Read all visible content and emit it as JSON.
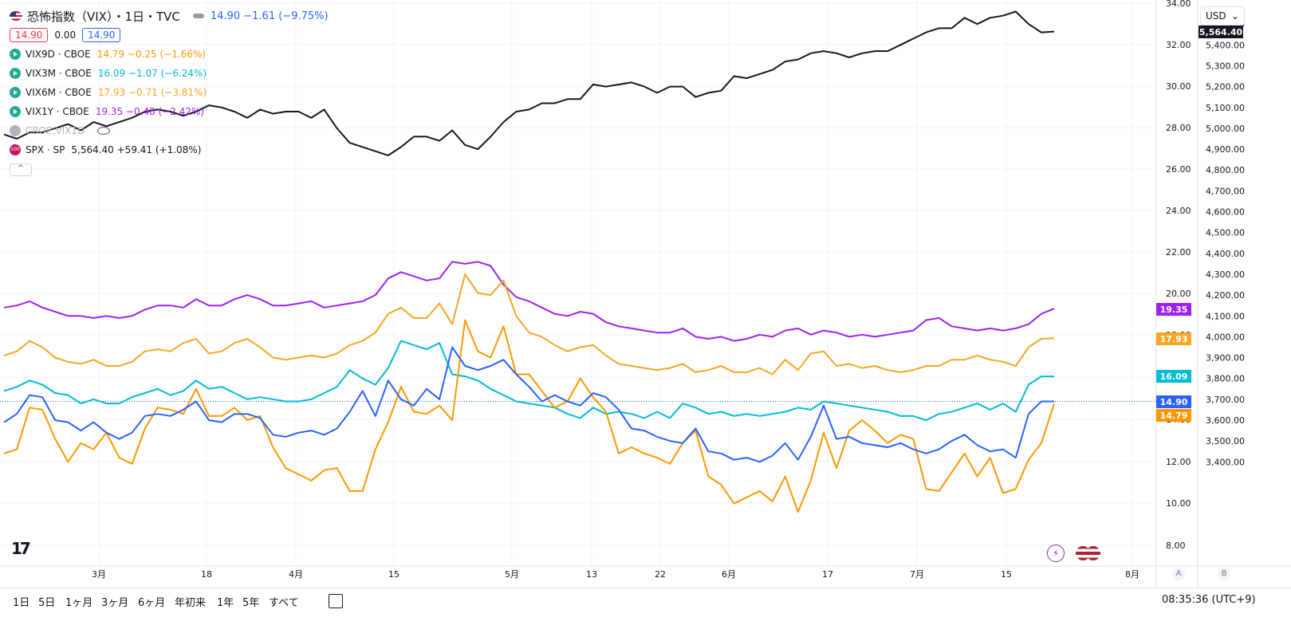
{
  "header": {
    "title": "恐怖指数（VIX）・1日・TVC",
    "change_text": "14.90 −1.61 (−9.75%)",
    "bid": "14.90",
    "spread": "0.00",
    "ask": "14.90",
    "collapse_glyph": "^"
  },
  "indicators": [
    {
      "name": "VIX9D · CBOE",
      "value": "14.79 −0.25 (−1.66%)",
      "color": "#ff9800"
    },
    {
      "name": "VIX3M · CBOE",
      "value": "16.09 −1.07 (−6.24%)",
      "color": "#00bcd4"
    },
    {
      "name": "VIX6M · CBOE",
      "value": "17.93 −0.71 (−3.81%)",
      "color": "#f5a623"
    },
    {
      "name": "VIX1Y · CBOE",
      "value": "19.35 −0.48 (−2.42%)",
      "color": "#a020f0"
    },
    {
      "name": "CBOE:VIX1D",
      "value": "",
      "color": "#b2b5be"
    },
    {
      "name": "SPX · SP",
      "value": "5,564.40 +59.41 (+1.08%)",
      "color": "#131722",
      "badge": "500"
    }
  ],
  "currency": {
    "label": "USD",
    "arrow": "⌄"
  },
  "range_buttons": [
    "1日",
    "5日",
    "1ヶ月",
    "3ヶ月",
    "6ヶ月",
    "年初来",
    "1年",
    "5年",
    "すべて"
  ],
  "clock": "08:35:36 (UTC+9)",
  "axis_ab": {
    "a": "A",
    "b": "B"
  },
  "logo_text": "17",
  "chart_data": {
    "type": "line",
    "x_tick_labels": [
      "3月",
      "18",
      "4月",
      "15",
      "5月",
      "13",
      "22",
      "6月",
      "17",
      "7月",
      "15",
      "8月"
    ],
    "left_axis": {
      "ticks": [
        "34.00",
        "32.00",
        "30.00",
        "28.00",
        "26.00",
        "24.00",
        "22.00",
        "20.00",
        "18.00",
        "16.00",
        "14.00",
        "12.00",
        "10.00",
        "8.00"
      ],
      "ylim": [
        7,
        34.3
      ]
    },
    "right_axis": {
      "ticks": [
        "5,564.40",
        "5,500.00",
        "5,400.00",
        "5,300.00",
        "5,200.00",
        "5,100.00",
        "5,000.00",
        "4,900.00",
        "4,800.00",
        "4,700.00",
        "4,600.00",
        "4,500.00",
        "4,400.00",
        "4,300.00",
        "4,200.00",
        "4,100.00",
        "4,000.00",
        "3,900.00",
        "3,800.00",
        "3,700.00",
        "3,600.00",
        "3,500.00",
        "3,400.00"
      ]
    },
    "last_value_labels": [
      {
        "text": "19.35",
        "color": "#a020f0"
      },
      {
        "text": "17.93",
        "color": "#f5a623"
      },
      {
        "text": "16.09",
        "color": "#00bcd4"
      },
      {
        "text": "14.90",
        "color": "#2962ff"
      },
      {
        "text": "14.79",
        "color": "#ff9800"
      },
      {
        "text": "5,564.40",
        "color": "#131722"
      }
    ],
    "series": [
      {
        "name": "SPX",
        "color": "#131722",
        "axis": "right",
        "values": [
          5070,
          5050,
          5080,
          5080,
          5100,
          5120,
          5090,
          5130,
          5110,
          5130,
          5150,
          5180,
          5190,
          5180,
          5160,
          5180,
          5210,
          5200,
          5180,
          5150,
          5190,
          5170,
          5180,
          5180,
          5150,
          5190,
          5100,
          5030,
          5010,
          4990,
          4970,
          5010,
          5060,
          5060,
          5040,
          5090,
          5020,
          5000,
          5060,
          5130,
          5180,
          5190,
          5220,
          5220,
          5240,
          5240,
          5310,
          5300,
          5310,
          5320,
          5300,
          5270,
          5300,
          5300,
          5250,
          5270,
          5280,
          5350,
          5340,
          5360,
          5380,
          5420,
          5430,
          5460,
          5470,
          5460,
          5440,
          5460,
          5470,
          5470,
          5500,
          5530,
          5560,
          5580,
          5580,
          5630,
          5600,
          5630,
          5640,
          5660,
          5600,
          5560,
          5564
        ]
      },
      {
        "name": "VIX",
        "color": "#2962ff",
        "axis": "left",
        "values": [
          13.9,
          14.3,
          15.2,
          15.1,
          14.0,
          13.9,
          13.5,
          13.9,
          13.4,
          13.1,
          13.4,
          14.2,
          14.3,
          14.2,
          14.5,
          14.9,
          14.0,
          13.9,
          14.3,
          14.3,
          14.1,
          13.3,
          13.2,
          13.4,
          13.5,
          13.3,
          13.6,
          14.4,
          15.4,
          14.2,
          15.9,
          15.0,
          14.7,
          15.5,
          15.0,
          17.5,
          16.6,
          16.4,
          16.6,
          16.9,
          16.2,
          15.6,
          14.9,
          15.2,
          14.9,
          14.7,
          15.3,
          15.1,
          14.5,
          13.6,
          13.5,
          13.2,
          13.0,
          12.9,
          13.6,
          12.5,
          12.4,
          12.1,
          12.2,
          12.0,
          12.3,
          12.9,
          12.1,
          13.2,
          14.7,
          13.1,
          13.2,
          12.9,
          12.8,
          12.7,
          12.9,
          12.6,
          12.4,
          12.6,
          13.0,
          13.3,
          12.8,
          12.5,
          12.6,
          12.2,
          14.3,
          14.9,
          14.9
        ]
      },
      {
        "name": "VIX3M",
        "color": "#00bcd4",
        "axis": "left",
        "values": [
          15.4,
          15.6,
          15.9,
          15.7,
          15.3,
          15.2,
          14.8,
          15.0,
          14.8,
          14.8,
          15.1,
          15.3,
          15.5,
          15.2,
          15.4,
          15.9,
          15.5,
          15.6,
          15.3,
          15.0,
          15.1,
          15.0,
          14.9,
          14.9,
          15.0,
          15.3,
          15.6,
          16.4,
          16.0,
          15.7,
          16.5,
          17.8,
          17.6,
          17.4,
          17.7,
          16.2,
          16.1,
          15.9,
          15.5,
          15.2,
          14.9,
          14.8,
          14.7,
          14.6,
          14.3,
          14.1,
          14.6,
          14.3,
          14.4,
          14.3,
          14.1,
          14.4,
          14.1,
          14.8,
          14.6,
          14.3,
          14.4,
          14.2,
          14.3,
          14.2,
          14.3,
          14.4,
          14.6,
          14.5,
          14.9,
          14.8,
          14.7,
          14.6,
          14.5,
          14.4,
          14.2,
          14.2,
          14.0,
          14.3,
          14.4,
          14.6,
          14.8,
          14.5,
          14.8,
          14.4,
          15.7,
          16.1,
          16.1
        ]
      },
      {
        "name": "VIX9D",
        "color": "#ff9800",
        "axis": "left",
        "values": [
          12.4,
          12.6,
          14.6,
          14.5,
          13.1,
          12.0,
          12.9,
          12.6,
          13.4,
          12.2,
          11.9,
          13.6,
          14.6,
          14.5,
          14.3,
          15.5,
          14.2,
          14.2,
          14.6,
          14.0,
          14.2,
          12.7,
          11.7,
          11.4,
          11.1,
          11.6,
          11.7,
          10.6,
          10.6,
          12.6,
          13.9,
          15.6,
          14.4,
          14.3,
          14.7,
          14.0,
          18.8,
          17.3,
          17.0,
          18.5,
          16.2,
          16.2,
          15.4,
          14.6,
          14.9,
          16.0,
          15.1,
          14.4,
          12.4,
          12.7,
          12.4,
          12.2,
          11.9,
          12.9,
          13.5,
          11.3,
          10.9,
          10.0,
          10.3,
          10.6,
          10.1,
          11.3,
          9.6,
          11.1,
          13.4,
          11.7,
          13.5,
          14.0,
          13.5,
          12.9,
          13.3,
          13.1,
          10.7,
          10.6,
          11.5,
          12.4,
          11.3,
          12.2,
          10.5,
          10.7,
          12.1,
          12.9,
          14.79
        ]
      },
      {
        "name": "VIX6M",
        "color": "#f5a623",
        "axis": "left",
        "values": [
          17.1,
          17.3,
          17.8,
          17.5,
          17.0,
          16.8,
          16.7,
          16.9,
          16.6,
          16.6,
          16.8,
          17.3,
          17.4,
          17.3,
          17.7,
          17.9,
          17.2,
          17.3,
          17.7,
          17.9,
          17.5,
          17.0,
          16.9,
          17.0,
          17.1,
          17.0,
          17.2,
          17.6,
          17.8,
          18.2,
          19.1,
          19.4,
          18.9,
          18.9,
          19.6,
          18.6,
          21.0,
          20.1,
          20.0,
          20.7,
          19.0,
          18.2,
          18.0,
          17.6,
          17.3,
          17.5,
          17.6,
          17.1,
          16.7,
          16.6,
          16.5,
          16.4,
          16.5,
          16.7,
          16.3,
          16.4,
          16.6,
          16.3,
          16.3,
          16.5,
          16.2,
          16.9,
          16.4,
          17.2,
          17.3,
          16.6,
          16.7,
          16.5,
          16.6,
          16.4,
          16.3,
          16.4,
          16.6,
          16.6,
          16.9,
          16.9,
          17.1,
          16.9,
          16.8,
          16.6,
          17.5,
          17.9,
          17.93
        ]
      },
      {
        "name": "VIX1Y",
        "color": "#a020f0",
        "axis": "left",
        "values": [
          19.4,
          19.5,
          19.7,
          19.4,
          19.2,
          19.0,
          19.0,
          18.9,
          19.0,
          18.9,
          19.0,
          19.3,
          19.5,
          19.5,
          19.4,
          19.8,
          19.5,
          19.5,
          19.8,
          20.0,
          19.8,
          19.5,
          19.5,
          19.6,
          19.7,
          19.4,
          19.5,
          19.6,
          19.7,
          20.0,
          20.8,
          21.1,
          20.9,
          20.7,
          20.8,
          21.6,
          21.5,
          21.6,
          21.4,
          20.5,
          19.9,
          19.7,
          19.4,
          19.1,
          19.0,
          19.2,
          19.1,
          18.7,
          18.5,
          18.4,
          18.3,
          18.2,
          18.2,
          18.4,
          18.0,
          17.9,
          18.0,
          17.8,
          17.9,
          18.1,
          18.0,
          18.3,
          18.4,
          18.1,
          18.3,
          18.2,
          18.0,
          18.1,
          18.0,
          18.1,
          18.2,
          18.3,
          18.8,
          18.9,
          18.5,
          18.4,
          18.3,
          18.4,
          18.3,
          18.4,
          18.6,
          19.1,
          19.35
        ]
      }
    ]
  }
}
